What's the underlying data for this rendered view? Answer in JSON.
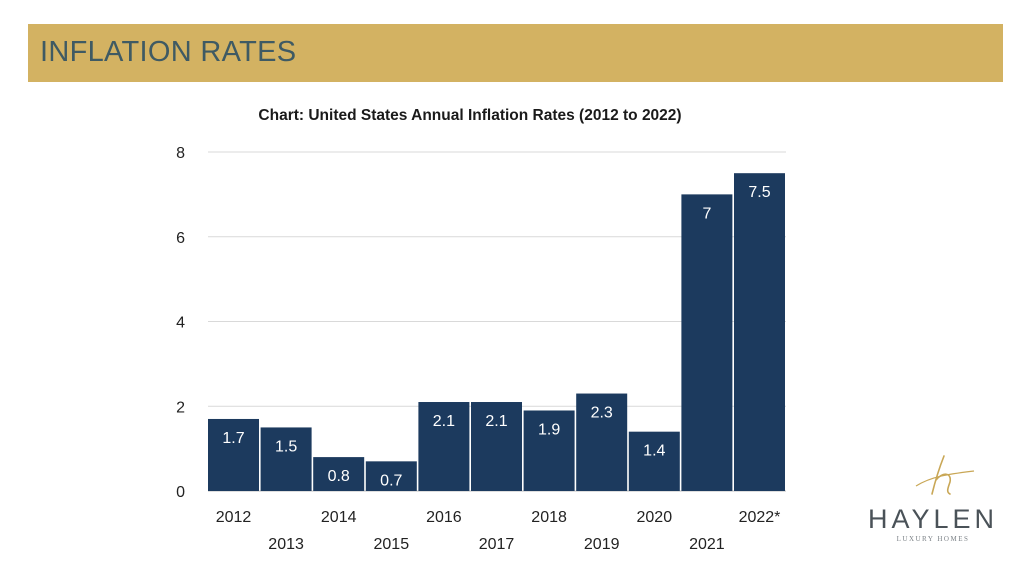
{
  "header": {
    "title": "INFLATION RATES"
  },
  "logo": {
    "name": "HAYLEN",
    "tagline": "LUXURY HOMES"
  },
  "colors": {
    "band": "#d3b262",
    "bar": "#1c3a5e",
    "grid": "#d9d9d9"
  },
  "chart_data": {
    "type": "bar",
    "title": "Chart: United States Annual Inflation Rates (2012 to 2022)",
    "xlabel": "",
    "ylabel": "",
    "categories": [
      "2012",
      "2013",
      "2014",
      "2015",
      "2016",
      "2017",
      "2018",
      "2019",
      "2020",
      "2021",
      "2022*"
    ],
    "values": [
      1.7,
      1.5,
      0.8,
      0.7,
      2.1,
      2.1,
      1.9,
      2.3,
      1.4,
      7,
      7.5
    ],
    "value_labels": [
      "1.7",
      "1.5",
      "0.8",
      "0.7",
      "2.1",
      "2.1",
      "1.9",
      "2.3",
      "1.4",
      "7",
      "7.5"
    ],
    "ylim": [
      0,
      8
    ],
    "yticks": [
      "0",
      "2",
      "4",
      "6",
      "8"
    ],
    "grid": true,
    "legend": "none"
  }
}
